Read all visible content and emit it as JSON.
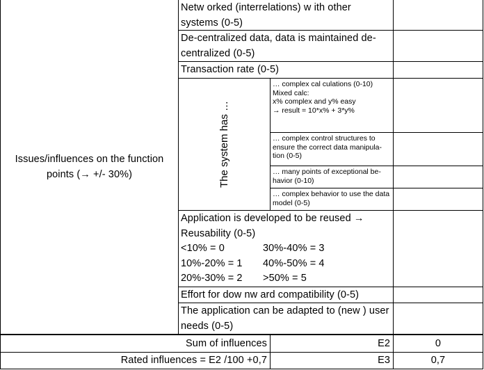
{
  "left_label": "Issues/influences on the function points (→ +/- 30%)",
  "rows": [
    {
      "label": "Netw orked (interrelations) w ith other systems (0-5)",
      "value": ""
    },
    {
      "label": "De-centralized data, data is maintained de-centralized (0-5)",
      "value": ""
    },
    {
      "label": "Transaction rate (0-5)",
      "value": ""
    }
  ],
  "system_has": {
    "label": "The system has …",
    "items": [
      {
        "lines": [
          "… complex cal culations (0-10)",
          "Mixed calc:",
          "x% complex and y% easy",
          "→ result = 10*x% + 3*y%"
        ],
        "value": ""
      },
      {
        "lines": [
          "… complex control structures to ensure the correct data manipula-tion (0-5)"
        ],
        "value": ""
      },
      {
        "lines": [
          "… many points of exceptional be-havior (0-10)"
        ],
        "value": ""
      },
      {
        "lines": [
          "… complex behavior to use the data model (0-5)"
        ],
        "value": ""
      }
    ]
  },
  "reuse": {
    "lines": [
      "Application is developed to be reused →",
      "Reusability (0-5)"
    ],
    "scale": [
      [
        "<10% = 0",
        "30%-40% = 3"
      ],
      [
        "10%-20% = 1",
        "40%-50% = 4"
      ],
      [
        "20%-30% = 2",
        ">50% = 5"
      ]
    ],
    "value": ""
  },
  "rows2": [
    {
      "label": "Effort for dow nw ard compatibility (0-5)",
      "value": ""
    },
    {
      "label": "The application can be adapted to (new ) user needs (0-5)",
      "value": ""
    }
  ],
  "summary": [
    {
      "label": "Sum of influences",
      "cell": "E2",
      "value": "0"
    },
    {
      "label": "Rated influences = E2 /100 +0,7",
      "cell": "E3",
      "value": "0,7"
    }
  ]
}
